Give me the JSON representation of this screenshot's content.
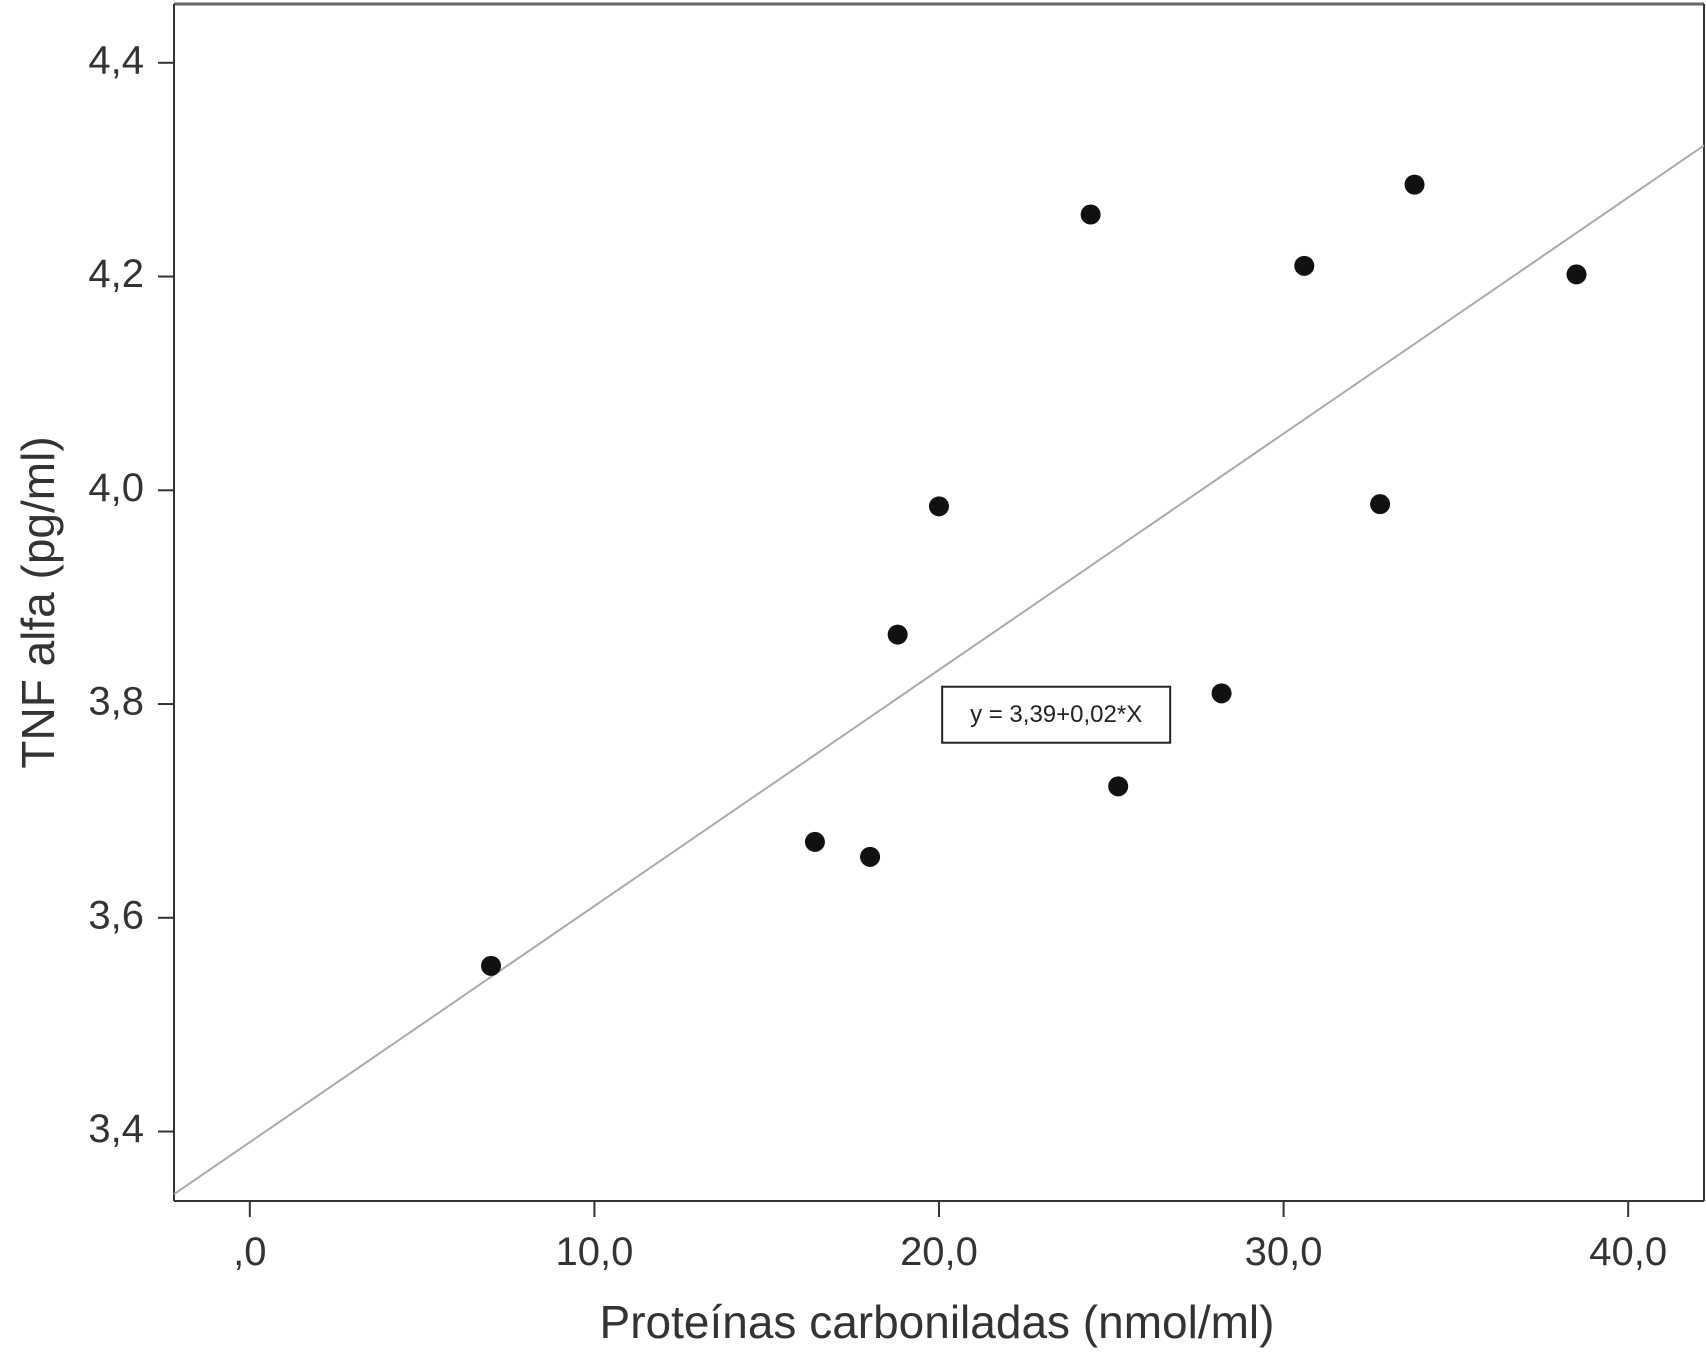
{
  "chart_data": {
    "type": "scatter",
    "title": "",
    "xlabel": "Proteínas carboniladas (nmol/ml)",
    "ylabel": "TNF alfa (pg/ml)",
    "xlim": [
      -2.2,
      42.2
    ],
    "ylim": [
      3.335,
      4.455
    ],
    "grid": false,
    "x_ticks": [
      {
        "value": 0,
        "label": ",0"
      },
      {
        "value": 10,
        "label": "10,0"
      },
      {
        "value": 20,
        "label": "20,0"
      },
      {
        "value": 30,
        "label": "30,0"
      },
      {
        "value": 40,
        "label": "40,0"
      }
    ],
    "y_ticks": [
      {
        "value": 3.4,
        "label": "3,4"
      },
      {
        "value": 3.6,
        "label": "3,6"
      },
      {
        "value": 3.8,
        "label": "3,8"
      },
      {
        "value": 4.0,
        "label": "4,0"
      },
      {
        "value": 4.2,
        "label": "4,2"
      },
      {
        "value": 4.4,
        "label": "4,4"
      }
    ],
    "points": [
      {
        "x": 7.0,
        "y": 3.555
      },
      {
        "x": 16.4,
        "y": 3.671
      },
      {
        "x": 18.0,
        "y": 3.657
      },
      {
        "x": 18.8,
        "y": 3.865
      },
      {
        "x": 20.0,
        "y": 3.985
      },
      {
        "x": 24.4,
        "y": 4.258
      },
      {
        "x": 25.2,
        "y": 3.723
      },
      {
        "x": 28.2,
        "y": 3.81
      },
      {
        "x": 30.6,
        "y": 4.21
      },
      {
        "x": 32.8,
        "y": 3.987
      },
      {
        "x": 33.8,
        "y": 4.286
      },
      {
        "x": 38.5,
        "y": 4.202
      }
    ],
    "fit_line": {
      "intercept": 3.39,
      "slope": 0.0221,
      "x_range": [
        -2.2,
        42.2
      ]
    },
    "annotation": {
      "text": "y = 3,39+0,02*X",
      "x": 23.4,
      "y": 3.79
    },
    "colors": {
      "points": "#111111",
      "fit_line": "#aaaaaa",
      "axes": "#333333",
      "frame_top": "#666666"
    }
  }
}
